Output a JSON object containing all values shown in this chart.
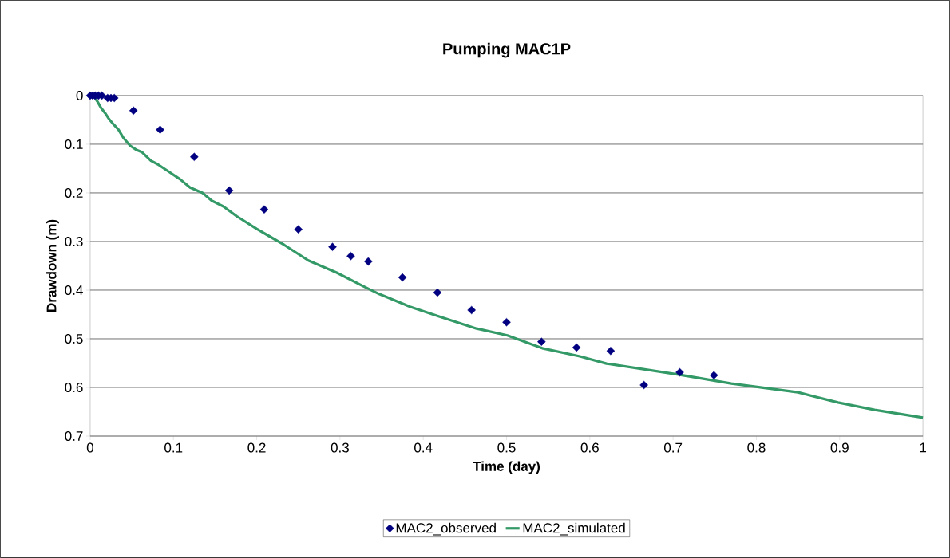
{
  "chart_data": {
    "type": "scatter",
    "title": "Pumping MAC1P",
    "xlabel": "Time (day)",
    "ylabel": "Drawdown (m)",
    "xlim": [
      0,
      1
    ],
    "ylim": [
      0.7,
      0
    ],
    "xticks": [
      0,
      0.1,
      0.2,
      0.3,
      0.4,
      0.5,
      0.6,
      0.7,
      0.8,
      0.9,
      1
    ],
    "yticks": [
      0,
      0.1,
      0.2,
      0.3,
      0.4,
      0.5,
      0.6,
      0.7
    ],
    "grid": "y",
    "legend": "bottom",
    "series": [
      {
        "name": "MAC2_observed",
        "marker": "diamond",
        "color": "#000080",
        "x": [
          0,
          0.003,
          0.006,
          0.01,
          0.014,
          0.021,
          0.025,
          0.029,
          0.052,
          0.084,
          0.125,
          0.167,
          0.209,
          0.25,
          0.291,
          0.313,
          0.334,
          0.375,
          0.417,
          0.458,
          0.5,
          0.542,
          0.584,
          0.625,
          0.665,
          0.708,
          0.749
        ],
        "values": [
          0,
          0,
          0,
          0,
          0,
          0.005,
          0.005,
          0.005,
          0.031,
          0.07,
          0.126,
          0.195,
          0.234,
          0.275,
          0.311,
          0.33,
          0.341,
          0.374,
          0.405,
          0.441,
          0.466,
          0.506,
          0.518,
          0.525,
          0.595,
          0.569,
          0.575
        ]
      },
      {
        "name": "MAC2_simulated",
        "type": "line",
        "marker": "none",
        "line_style": "solid",
        "color": "#339966",
        "x": [
          0,
          0.005,
          0.009,
          0.013,
          0.018,
          0.023,
          0.028,
          0.034,
          0.04,
          0.048,
          0.055,
          0.062,
          0.073,
          0.081,
          0.095,
          0.108,
          0.12,
          0.135,
          0.146,
          0.16,
          0.176,
          0.2,
          0.215,
          0.233,
          0.262,
          0.296,
          0.329,
          0.347,
          0.384,
          0.419,
          0.464,
          0.501,
          0.544,
          0.588,
          0.62,
          0.708,
          0.77,
          0.85,
          0.898,
          0.942,
          1
        ],
        "values": [
          0,
          0.003,
          0.013,
          0.025,
          0.036,
          0.049,
          0.059,
          0.07,
          0.087,
          0.103,
          0.111,
          0.116,
          0.134,
          0.141,
          0.157,
          0.172,
          0.189,
          0.2,
          0.216,
          0.228,
          0.248,
          0.274,
          0.289,
          0.307,
          0.339,
          0.364,
          0.393,
          0.408,
          0.434,
          0.454,
          0.479,
          0.493,
          0.52,
          0.536,
          0.551,
          0.574,
          0.592,
          0.61,
          0.631,
          0.646,
          0.662
        ]
      }
    ]
  }
}
